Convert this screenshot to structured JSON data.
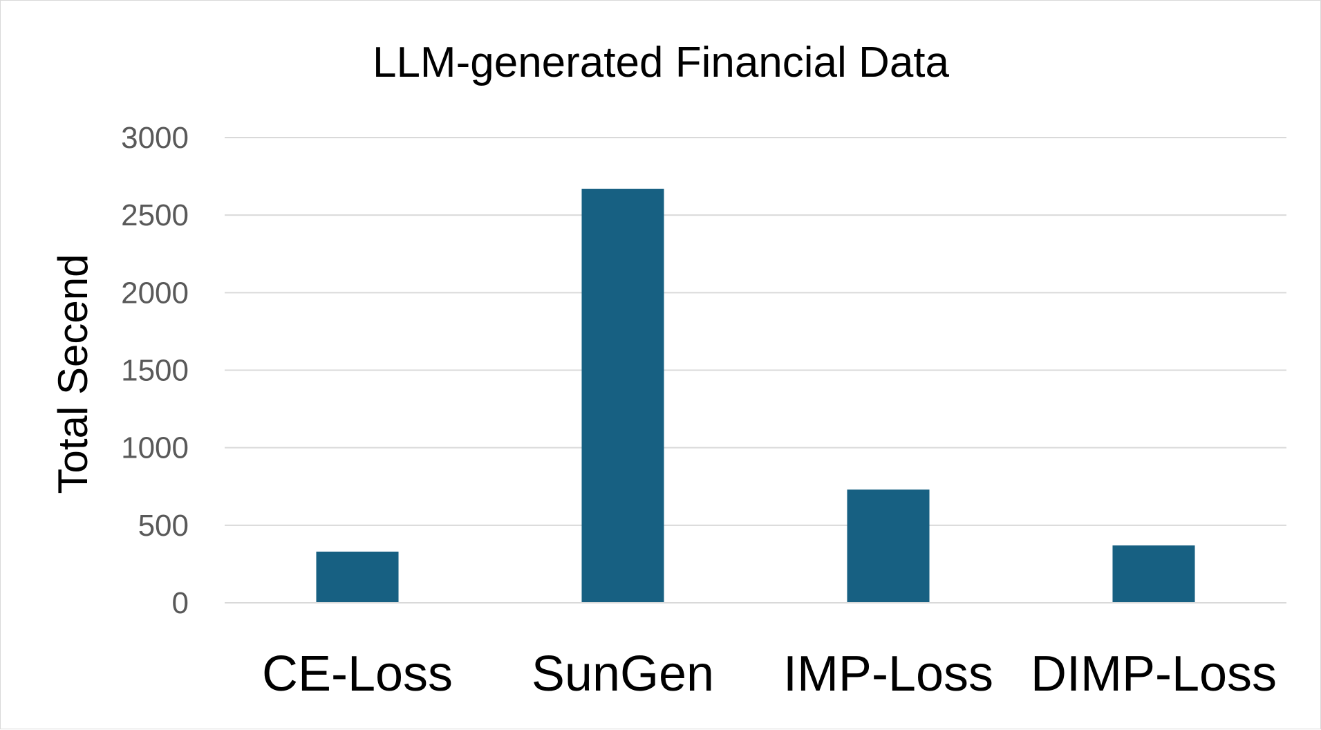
{
  "chart_data": {
    "type": "bar",
    "title": "LLM-generated Financial Data",
    "xlabel": "",
    "ylabel": "Total Secend",
    "categories": [
      "CE-Loss",
      "SunGen",
      "IMP-Loss",
      "DIMP-Loss"
    ],
    "values": [
      330,
      2670,
      730,
      370
    ],
    "ylim": [
      0,
      3000
    ],
    "yticks": [
      0,
      500,
      1000,
      1500,
      2000,
      2500,
      3000
    ],
    "grid": true,
    "legend": "none",
    "colors": {
      "bar": "#176082",
      "gridline": "#d9d9d9",
      "tick_label": "#595959"
    }
  }
}
